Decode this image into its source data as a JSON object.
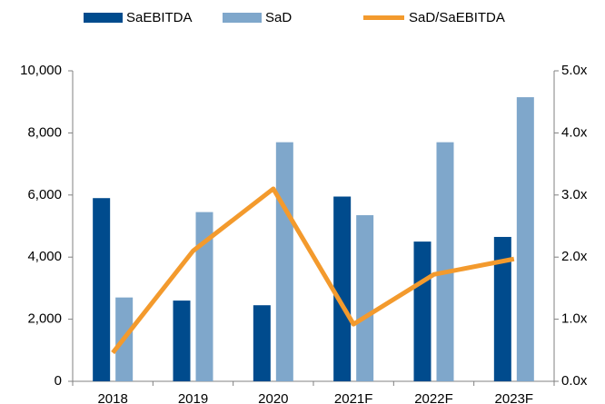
{
  "chart_data": {
    "type": "bar_line",
    "categories": [
      "2018",
      "2019",
      "2020",
      "2021F",
      "2022F",
      "2023F"
    ],
    "series": [
      {
        "name": "SaEBITDA",
        "color": "#004b8d",
        "type": "bar",
        "values": [
          5900,
          2600,
          2450,
          5950,
          4500,
          4650
        ]
      },
      {
        "name": "SaD",
        "color": "#7fa7cb",
        "type": "bar",
        "values": [
          2700,
          5450,
          7700,
          5350,
          7700,
          9150
        ]
      },
      {
        "name": "SaD/SaEBITDA",
        "color": "#f39a2d",
        "type": "line",
        "axis": "y2",
        "values": [
          0.46,
          2.1,
          3.1,
          0.92,
          1.72,
          1.97
        ]
      }
    ],
    "ylim": [
      0,
      10000
    ],
    "yticks": [
      0,
      {
        "value": 2000,
        "label": "2,000"
      },
      {
        "value": 4000,
        "label": "4,000"
      },
      {
        "value": 6000,
        "label": "6,000"
      },
      {
        "value": 8000,
        "label": "8,000"
      },
      {
        "value": 10000,
        "label": "10,000"
      }
    ],
    "y2lim": [
      0,
      5
    ],
    "y2ticks": [
      {
        "value": 0,
        "label": "0.0x"
      },
      {
        "value": 1,
        "label": "1.0x"
      },
      {
        "value": 2,
        "label": "2.0x"
      },
      {
        "value": 3,
        "label": "3.0x"
      },
      {
        "value": 4,
        "label": "4.0x"
      },
      {
        "value": 5,
        "label": "5.0x"
      }
    ],
    "grid": false,
    "legend": "top"
  }
}
